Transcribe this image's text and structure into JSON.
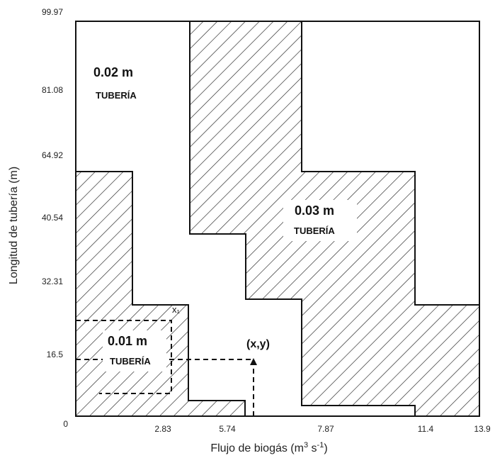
{
  "chart_data": {
    "type": "area",
    "xlabel_main": "Flujo de biogás (m",
    "xlabel_sup": "3",
    "xlabel_tail": " s",
    "xlabel_sup2": "-1",
    "xlabel_close": ")",
    "ylabel": "Longitud de tubería (m)",
    "x_ticks": [
      "0",
      "2.83",
      "5.74",
      "7.87",
      "11.4",
      "13.9"
    ],
    "y_ticks": [
      "0",
      "16.5",
      "32.31",
      "40.54",
      "64.92",
      "81.08",
      "99.97"
    ],
    "regions": [
      {
        "size": "0.02 m",
        "label": "TUBERÍA",
        "hatched": false
      },
      {
        "size": "0.03 m",
        "label": "TUBERÍA",
        "hatched": true
      },
      {
        "size": "0.01 m",
        "label": "TUBERÍA",
        "hatched": true
      }
    ],
    "annotations": {
      "point": "(x,y)",
      "corner": "x₁"
    }
  }
}
